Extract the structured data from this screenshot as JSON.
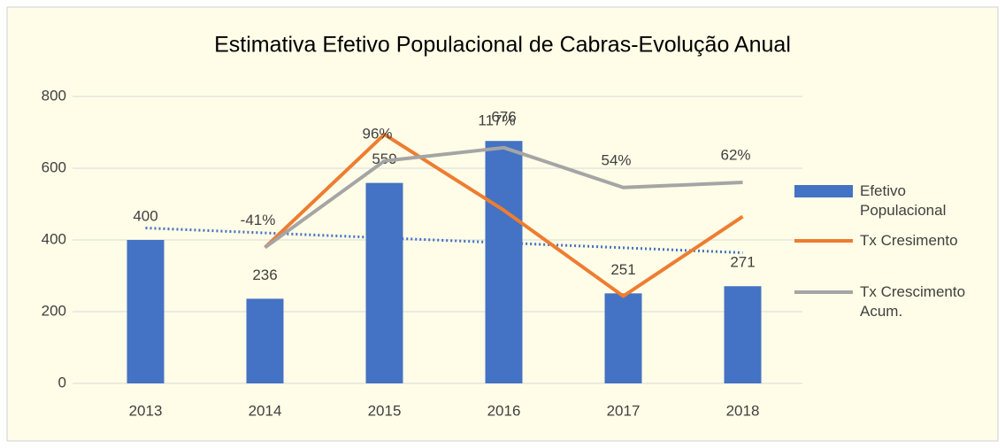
{
  "chart_data": {
    "type": "combo",
    "title": "Estimativa Efetivo Populacional de Cabras-Evolução Anual",
    "categories": [
      "2013",
      "2014",
      "2015",
      "2016",
      "2017",
      "2018"
    ],
    "series": [
      {
        "name": "Efetivo Populacional",
        "type": "bar",
        "color": "#4472c4",
        "values": [
          400,
          236,
          559,
          676,
          251,
          271
        ]
      },
      {
        "name": "Tx Cresimento",
        "type": "line",
        "axis": "y2",
        "color": "#ed7d31",
        "values": [
          null,
          -41,
          138,
          18,
          -118,
          8
        ]
      },
      {
        "name": "Tx Crescimento Acum.",
        "type": "line",
        "axis": "y2",
        "color": "#a5a5a5",
        "values": [
          null,
          -41,
          96,
          117,
          54,
          62
        ],
        "value_labels": [
          null,
          "-41%",
          "96%",
          "117%",
          "54%",
          "62%"
        ]
      }
    ],
    "trendline": {
      "series": 0,
      "color": "#4472c4"
    },
    "ylim": [
      0,
      800
    ],
    "yticks": [
      0,
      200,
      400,
      600,
      800
    ],
    "y2lim": [
      -256,
      198
    ],
    "grid": true,
    "legend": "right"
  }
}
